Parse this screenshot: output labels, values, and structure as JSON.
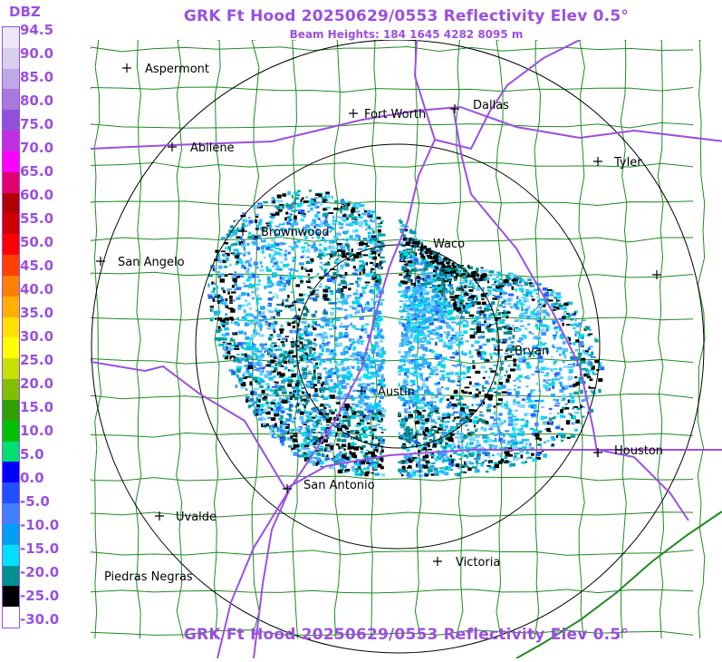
{
  "header": {
    "title": "GRK Ft Hood 20250629/0553 Reflectivity Elev 0.5°",
    "beam_heights": "Beam Heights: 184 1645 4282 8095 m",
    "footer_title": "GRK Ft Hood 20250629/0553 Reflectivity Elev 0.5°"
  },
  "legend": {
    "unit": "DBZ",
    "ticks": [
      "94.5",
      "90.0",
      "85.0",
      "80.0",
      "75.0",
      "70.0",
      "65.0",
      "60.0",
      "55.0",
      "50.0",
      "45.0",
      "40.0",
      "35.0",
      "30.0",
      "25.0",
      "20.0",
      "15.0",
      "10.0",
      "5.0",
      "0.0",
      "-5.0",
      "-10.0",
      "-15.0",
      "-20.0",
      "-25.0",
      "-30.0"
    ],
    "colors": [
      "#ece8f5",
      "#d8cfee",
      "#bfa8e6",
      "#a878dc",
      "#9050d8",
      "#c030e0",
      "#ff00ff",
      "#e00070",
      "#b00000",
      "#d00000",
      "#ff0000",
      "#ff4000",
      "#ff8000",
      "#ffb000",
      "#ffe000",
      "#ffff00",
      "#c8e000",
      "#80c000",
      "#30a000",
      "#00c000",
      "#00e070",
      "#0000ff",
      "#2050ff",
      "#4080ff",
      "#00a0f0",
      "#00e0ff",
      "#009090",
      "#000000",
      "#ffffff"
    ]
  },
  "map": {
    "radar_site": "GRK Ft Hood",
    "cities": [
      {
        "name": "Aspermont",
        "label": "Aspermont"
      },
      {
        "name": "Fort Worth",
        "label": "Fort Worth"
      },
      {
        "name": "Dallas",
        "label": "Dallas"
      },
      {
        "name": "Abilene",
        "label": "Abilene"
      },
      {
        "name": "Tyler",
        "label": "Tyler"
      },
      {
        "name": "Brownwood",
        "label": "Brownwood"
      },
      {
        "name": "Waco",
        "label": "Waco"
      },
      {
        "name": "San Angelo",
        "label": "San Angelo"
      },
      {
        "name": "Bryan",
        "label": "Bryan"
      },
      {
        "name": "Austin",
        "label": "Austin"
      },
      {
        "name": "Houston",
        "label": "Houston"
      },
      {
        "name": "San Antonio",
        "label": "San Antonio"
      },
      {
        "name": "Uvalde",
        "label": "Uvalde"
      },
      {
        "name": "Victoria",
        "label": "Victoria"
      },
      {
        "name": "Piedras Negras",
        "label": "Piedras Negras"
      },
      {
        "name": "Unlabeled",
        "label": ""
      }
    ]
  }
}
